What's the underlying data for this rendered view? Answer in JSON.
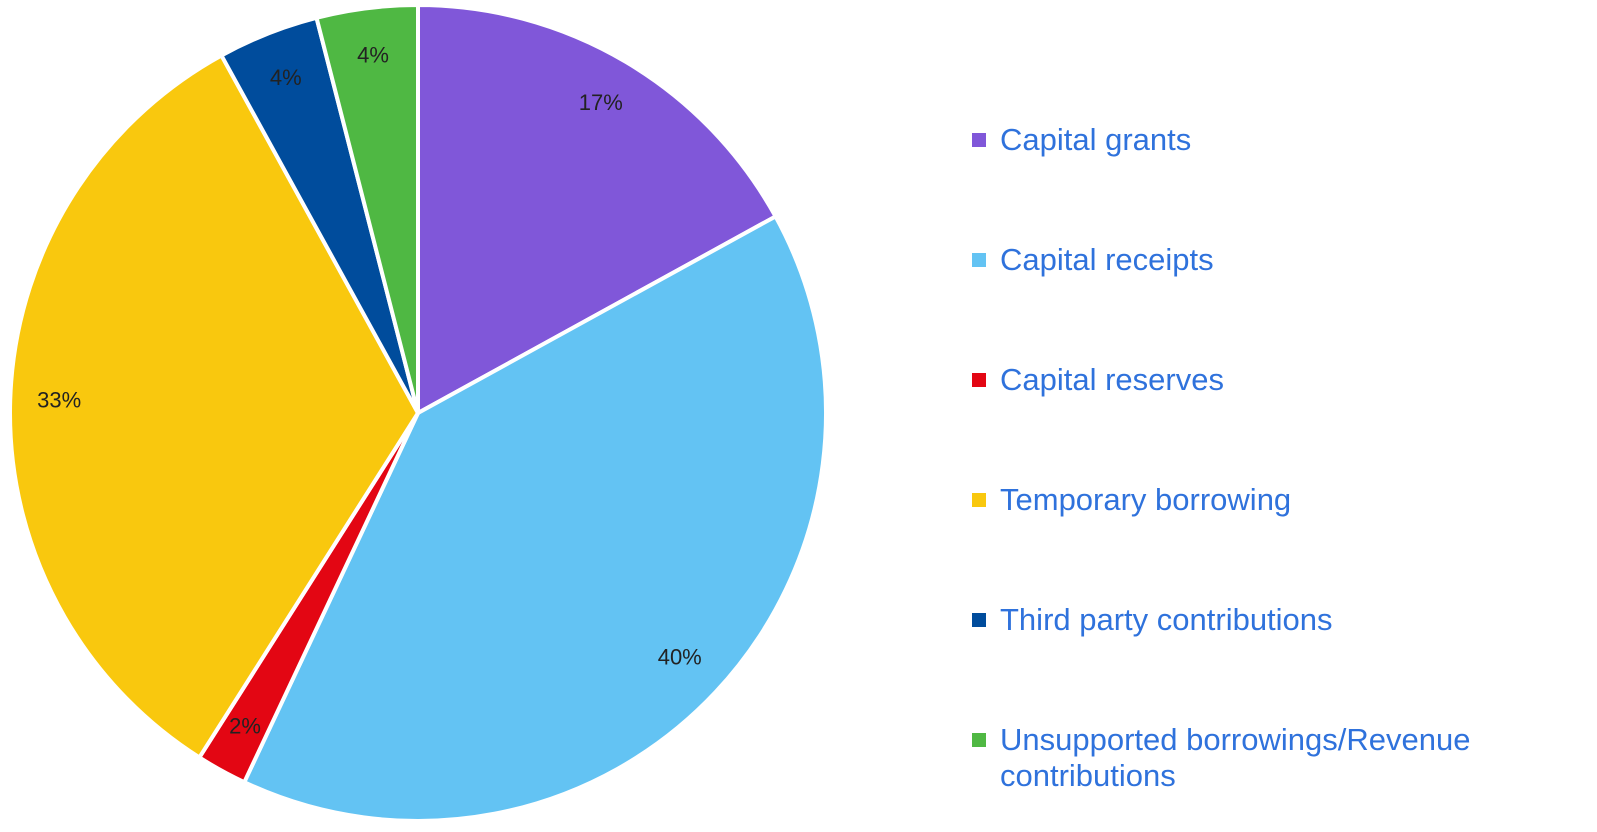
{
  "chart_data": {
    "type": "pie",
    "categories": [
      "Capital grants",
      "Capital receipts",
      "Capital reserves",
      "Temporary borrowing",
      "Third party contributions",
      "Unsupported borrowings/Revenue contributions"
    ],
    "values": [
      17,
      40,
      2,
      33,
      4,
      4
    ],
    "value_labels": [
      "17%",
      "40%",
      "2%",
      "33%",
      "4%",
      "4%"
    ],
    "colors": [
      "#8057d9",
      "#63c3f3",
      "#e30613",
      "#f9c80e",
      "#004c9c",
      "#4fb843"
    ],
    "legend": "right"
  }
}
